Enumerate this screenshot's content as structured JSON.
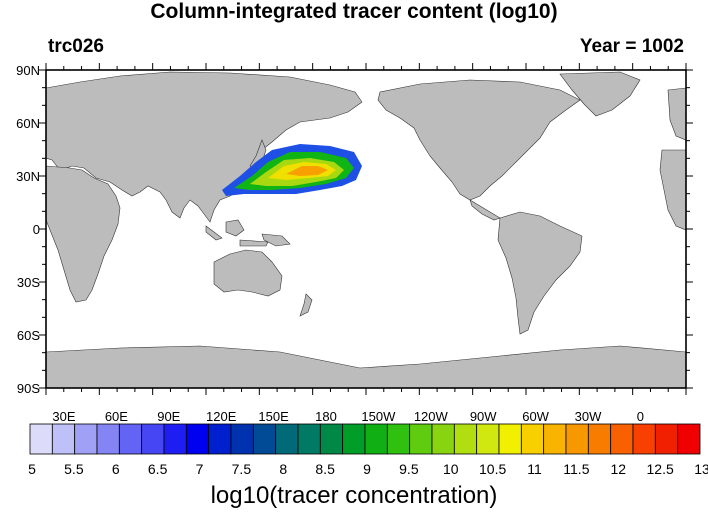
{
  "title": "Column-integrated tracer content (log10)",
  "left_label": "trc026",
  "right_label": "Year = 1002",
  "lat_labels": [
    "90N",
    "60N",
    "30N",
    "0",
    "30S",
    "60S",
    "90S"
  ],
  "lon_labels": [
    "30E",
    "60E",
    "90E",
    "120E",
    "150E",
    "180",
    "150W",
    "120W",
    "90W",
    "60W",
    "30W",
    "0"
  ],
  "colorbar": {
    "title": "log10(tracer concentration)",
    "labels": [
      "5",
      "5.5",
      "6",
      "6.5",
      "7",
      "7.5",
      "8",
      "8.5",
      "9",
      "9.5",
      "10",
      "10.5",
      "11",
      "11.5",
      "12",
      "12.5",
      "13"
    ],
    "colors": [
      "#dcdcfa",
      "#c0c0f8",
      "#a0a0f6",
      "#8484f4",
      "#6464f4",
      "#4646f4",
      "#1e1ef2",
      "#0000f0",
      "#0020d0",
      "#0032b0",
      "#004a96",
      "#006a78",
      "#007a64",
      "#008846",
      "#009e28",
      "#10b014",
      "#30c010",
      "#60cc10",
      "#88d410",
      "#b0de10",
      "#d0e810",
      "#f0f000",
      "#f8d000",
      "#f8b400",
      "#f89800",
      "#f87c00",
      "#f86000",
      "#f84000",
      "#f02000",
      "#f00000"
    ]
  },
  "colors": {
    "land": "#bcbcbc",
    "ocean": "#ffffff",
    "plume_low": "#1e50e6",
    "plume_mid": "#10b414",
    "plume_high": "#f8a000"
  }
}
